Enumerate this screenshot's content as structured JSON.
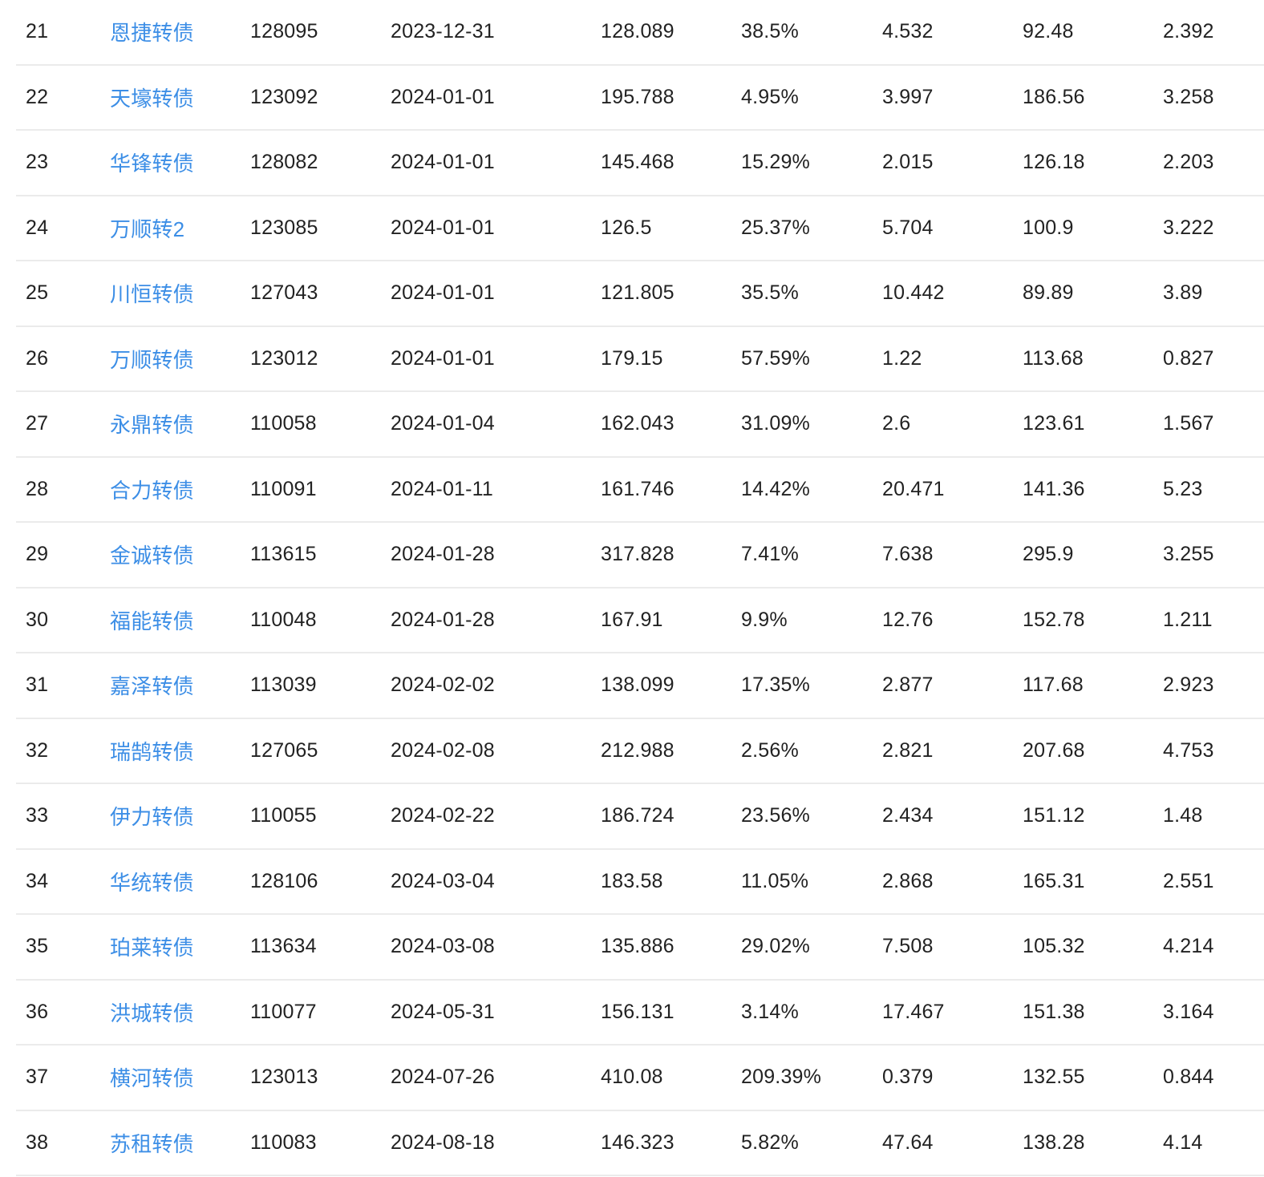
{
  "colors": {
    "link": "#3c8ee6",
    "text": "#222222",
    "divider": "#ebebeb"
  },
  "table": {
    "rows": [
      {
        "idx": "21",
        "name": "恩捷转债",
        "code": "128095",
        "date": "2023-12-31",
        "price": "128.089",
        "premium": "38.5%",
        "v1": "4.532",
        "v2": "92.48",
        "v3": "2.392"
      },
      {
        "idx": "22",
        "name": "天壕转债",
        "code": "123092",
        "date": "2024-01-01",
        "price": "195.788",
        "premium": "4.95%",
        "v1": "3.997",
        "v2": "186.56",
        "v3": "3.258"
      },
      {
        "idx": "23",
        "name": "华锋转债",
        "code": "128082",
        "date": "2024-01-01",
        "price": "145.468",
        "premium": "15.29%",
        "v1": "2.015",
        "v2": "126.18",
        "v3": "2.203"
      },
      {
        "idx": "24",
        "name": "万顺转2",
        "code": "123085",
        "date": "2024-01-01",
        "price": "126.5",
        "premium": "25.37%",
        "v1": "5.704",
        "v2": "100.9",
        "v3": "3.222"
      },
      {
        "idx": "25",
        "name": "川恒转债",
        "code": "127043",
        "date": "2024-01-01",
        "price": "121.805",
        "premium": "35.5%",
        "v1": "10.442",
        "v2": "89.89",
        "v3": "3.89"
      },
      {
        "idx": "26",
        "name": "万顺转债",
        "code": "123012",
        "date": "2024-01-01",
        "price": "179.15",
        "premium": "57.59%",
        "v1": "1.22",
        "v2": "113.68",
        "v3": "0.827"
      },
      {
        "idx": "27",
        "name": "永鼎转债",
        "code": "110058",
        "date": "2024-01-04",
        "price": "162.043",
        "premium": "31.09%",
        "v1": "2.6",
        "v2": "123.61",
        "v3": "1.567"
      },
      {
        "idx": "28",
        "name": "合力转债",
        "code": "110091",
        "date": "2024-01-11",
        "price": "161.746",
        "premium": "14.42%",
        "v1": "20.471",
        "v2": "141.36",
        "v3": "5.23"
      },
      {
        "idx": "29",
        "name": "金诚转债",
        "code": "113615",
        "date": "2024-01-28",
        "price": "317.828",
        "premium": "7.41%",
        "v1": "7.638",
        "v2": "295.9",
        "v3": "3.255"
      },
      {
        "idx": "30",
        "name": "福能转债",
        "code": "110048",
        "date": "2024-01-28",
        "price": "167.91",
        "premium": "9.9%",
        "v1": "12.76",
        "v2": "152.78",
        "v3": "1.211"
      },
      {
        "idx": "31",
        "name": "嘉泽转债",
        "code": "113039",
        "date": "2024-02-02",
        "price": "138.099",
        "premium": "17.35%",
        "v1": "2.877",
        "v2": "117.68",
        "v3": "2.923"
      },
      {
        "idx": "32",
        "name": "瑞鹄转债",
        "code": "127065",
        "date": "2024-02-08",
        "price": "212.988",
        "premium": "2.56%",
        "v1": "2.821",
        "v2": "207.68",
        "v3": "4.753"
      },
      {
        "idx": "33",
        "name": "伊力转债",
        "code": "110055",
        "date": "2024-02-22",
        "price": "186.724",
        "premium": "23.56%",
        "v1": "2.434",
        "v2": "151.12",
        "v3": "1.48"
      },
      {
        "idx": "34",
        "name": "华统转债",
        "code": "128106",
        "date": "2024-03-04",
        "price": "183.58",
        "premium": "11.05%",
        "v1": "2.868",
        "v2": "165.31",
        "v3": "2.551"
      },
      {
        "idx": "35",
        "name": "珀莱转债",
        "code": "113634",
        "date": "2024-03-08",
        "price": "135.886",
        "premium": "29.02%",
        "v1": "7.508",
        "v2": "105.32",
        "v3": "4.214"
      },
      {
        "idx": "36",
        "name": "洪城转债",
        "code": "110077",
        "date": "2024-05-31",
        "price": "156.131",
        "premium": "3.14%",
        "v1": "17.467",
        "v2": "151.38",
        "v3": "3.164"
      },
      {
        "idx": "37",
        "name": "横河转债",
        "code": "123013",
        "date": "2024-07-26",
        "price": "410.08",
        "premium": "209.39%",
        "v1": "0.379",
        "v2": "132.55",
        "v3": "0.844"
      },
      {
        "idx": "38",
        "name": "苏租转债",
        "code": "110083",
        "date": "2024-08-18",
        "price": "146.323",
        "premium": "5.82%",
        "v1": "47.64",
        "v2": "138.28",
        "v3": "4.14"
      }
    ]
  }
}
